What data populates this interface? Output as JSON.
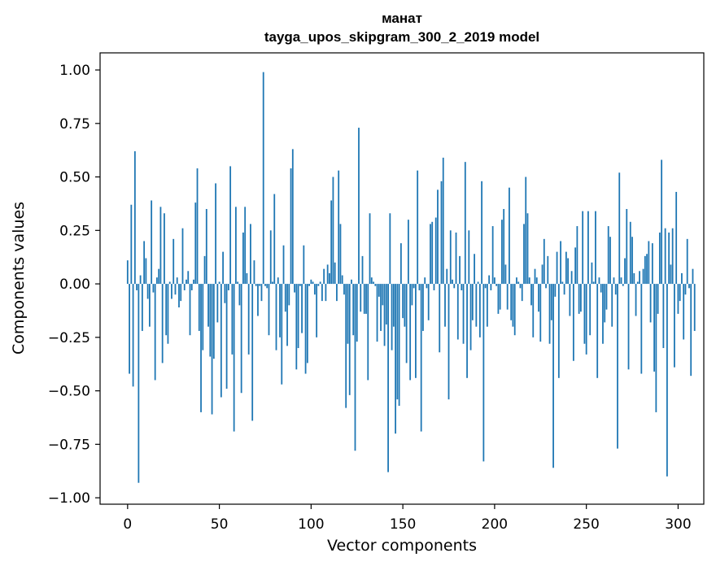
{
  "chart_data": {
    "type": "bar",
    "title": "манат",
    "subtitle": "tayga_upos_skipgram_300_2_2019 model",
    "xlabel": "Vector components",
    "ylabel": "Components values",
    "xlim": [
      -15,
      314
    ],
    "ylim": [
      -1.03,
      1.08
    ],
    "xticks": [
      0,
      50,
      100,
      150,
      200,
      250,
      300
    ],
    "xtick_labels": [
      "0",
      "50",
      "100",
      "150",
      "200",
      "250",
      "300"
    ],
    "yticks": [
      -1.0,
      -0.75,
      -0.5,
      -0.25,
      0.0,
      0.25,
      0.5,
      0.75,
      1.0
    ],
    "ytick_labels": [
      "−1.00",
      "−0.75",
      "−0.50",
      "−0.25",
      "0.00",
      "0.25",
      "0.50",
      "0.75",
      "1.00"
    ],
    "grid": false,
    "bar_color": "#1f77b4",
    "values": [
      0.11,
      -0.42,
      0.37,
      -0.48,
      0.62,
      -0.03,
      -0.93,
      0.04,
      -0.22,
      0.2,
      0.12,
      -0.07,
      -0.2,
      0.39,
      -0.04,
      -0.45,
      0.03,
      0.07,
      0.36,
      -0.37,
      0.33,
      -0.24,
      -0.28,
      0.01,
      -0.07,
      0.21,
      -0.05,
      0.03,
      -0.11,
      -0.08,
      0.26,
      -0.03,
      0.02,
      0.06,
      -0.24,
      -0.03,
      0.02,
      0.38,
      0.54,
      -0.22,
      -0.6,
      -0.31,
      0.13,
      0.35,
      -0.2,
      -0.34,
      -0.61,
      -0.35,
      0.47,
      -0.18,
      0.01,
      -0.53,
      0.15,
      -0.09,
      -0.49,
      -0.03,
      0.55,
      -0.33,
      -0.69,
      0.36,
      0.01,
      -0.1,
      -0.51,
      0.24,
      0.36,
      0.05,
      -0.33,
      0.28,
      -0.64,
      0.11,
      -0.01,
      -0.15,
      -0.01,
      -0.08,
      0.99,
      -0.01,
      -0.02,
      -0.24,
      0.25,
      0.01,
      0.42,
      -0.31,
      0.03,
      -0.25,
      -0.47,
      0.18,
      -0.13,
      -0.29,
      -0.1,
      0.54,
      0.63,
      -0.04,
      -0.4,
      -0.3,
      -0.01,
      -0.23,
      0.18,
      -0.42,
      -0.37,
      -0.01,
      0.02,
      0.01,
      -0.05,
      -0.25,
      -0.01,
      0.01,
      -0.08,
      0.07,
      -0.08,
      0.09,
      0.05,
      0.39,
      0.5,
      0.1,
      -0.08,
      0.53,
      0.28,
      0.04,
      -0.05,
      -0.58,
      -0.28,
      -0.52,
      0.02,
      -0.24,
      -0.78,
      -0.27,
      0.73,
      -0.13,
      0.13,
      -0.14,
      -0.14,
      -0.45,
      0.33,
      0.03,
      0.01,
      -0.01,
      -0.27,
      -0.06,
      -0.22,
      -0.1,
      -0.29,
      -0.19,
      -0.88,
      0.33,
      -0.31,
      -0.2,
      -0.7,
      -0.54,
      -0.57,
      0.19,
      -0.16,
      -0.2,
      -0.37,
      0.3,
      -0.45,
      -0.1,
      -0.02,
      -0.44,
      0.53,
      -0.03,
      -0.69,
      -0.22,
      0.03,
      -0.02,
      -0.17,
      0.28,
      0.29,
      -0.03,
      0.31,
      0.44,
      -0.32,
      0.48,
      0.59,
      -0.2,
      0.07,
      -0.54,
      0.25,
      0.02,
      -0.02,
      0.24,
      -0.26,
      0.13,
      -0.03,
      -0.28,
      0.57,
      -0.44,
      0.25,
      -0.31,
      -0.17,
      0.14,
      -0.2,
      0.01,
      -0.25,
      0.48,
      -0.83,
      -0.02,
      -0.2,
      0.04,
      -0.03,
      0.27,
      0.03,
      -0.01,
      -0.14,
      -0.12,
      0.3,
      0.35,
      0.09,
      -0.12,
      0.45,
      -0.17,
      -0.2,
      -0.24,
      0.03,
      0.01,
      -0.02,
      -0.08,
      0.28,
      0.5,
      0.33,
      0.03,
      -0.1,
      -0.25,
      0.07,
      0.03,
      -0.13,
      -0.27,
      0.09,
      0.21,
      -0.02,
      0.13,
      -0.28,
      -0.17,
      -0.86,
      -0.06,
      0.15,
      -0.44,
      0.2,
      0.01,
      -0.05,
      0.15,
      0.12,
      -0.15,
      0.06,
      -0.36,
      0.17,
      0.27,
      -0.14,
      -0.13,
      0.34,
      -0.28,
      -0.33,
      0.34,
      -0.24,
      0.1,
      0.01,
      0.34,
      -0.44,
      0.03,
      -0.04,
      -0.28,
      -0.18,
      -0.12,
      0.27,
      0.22,
      -0.2,
      0.03,
      -0.05,
      -0.77,
      0.52,
      0.03,
      -0.01,
      0.12,
      0.35,
      -0.4,
      0.29,
      0.22,
      0.05,
      -0.15,
      0.01,
      0.06,
      -0.42,
      0.07,
      0.13,
      0.14,
      0.2,
      -0.18,
      0.19,
      -0.41,
      -0.6,
      -0.14,
      0.24,
      0.58,
      -0.3,
      0.26,
      -0.9,
      0.24,
      0.09,
      0.26,
      -0.39,
      0.43,
      -0.14,
      -0.08,
      0.05,
      -0.26,
      -0.05,
      0.21,
      -0.02,
      -0.43,
      0.07,
      -0.22
    ]
  }
}
